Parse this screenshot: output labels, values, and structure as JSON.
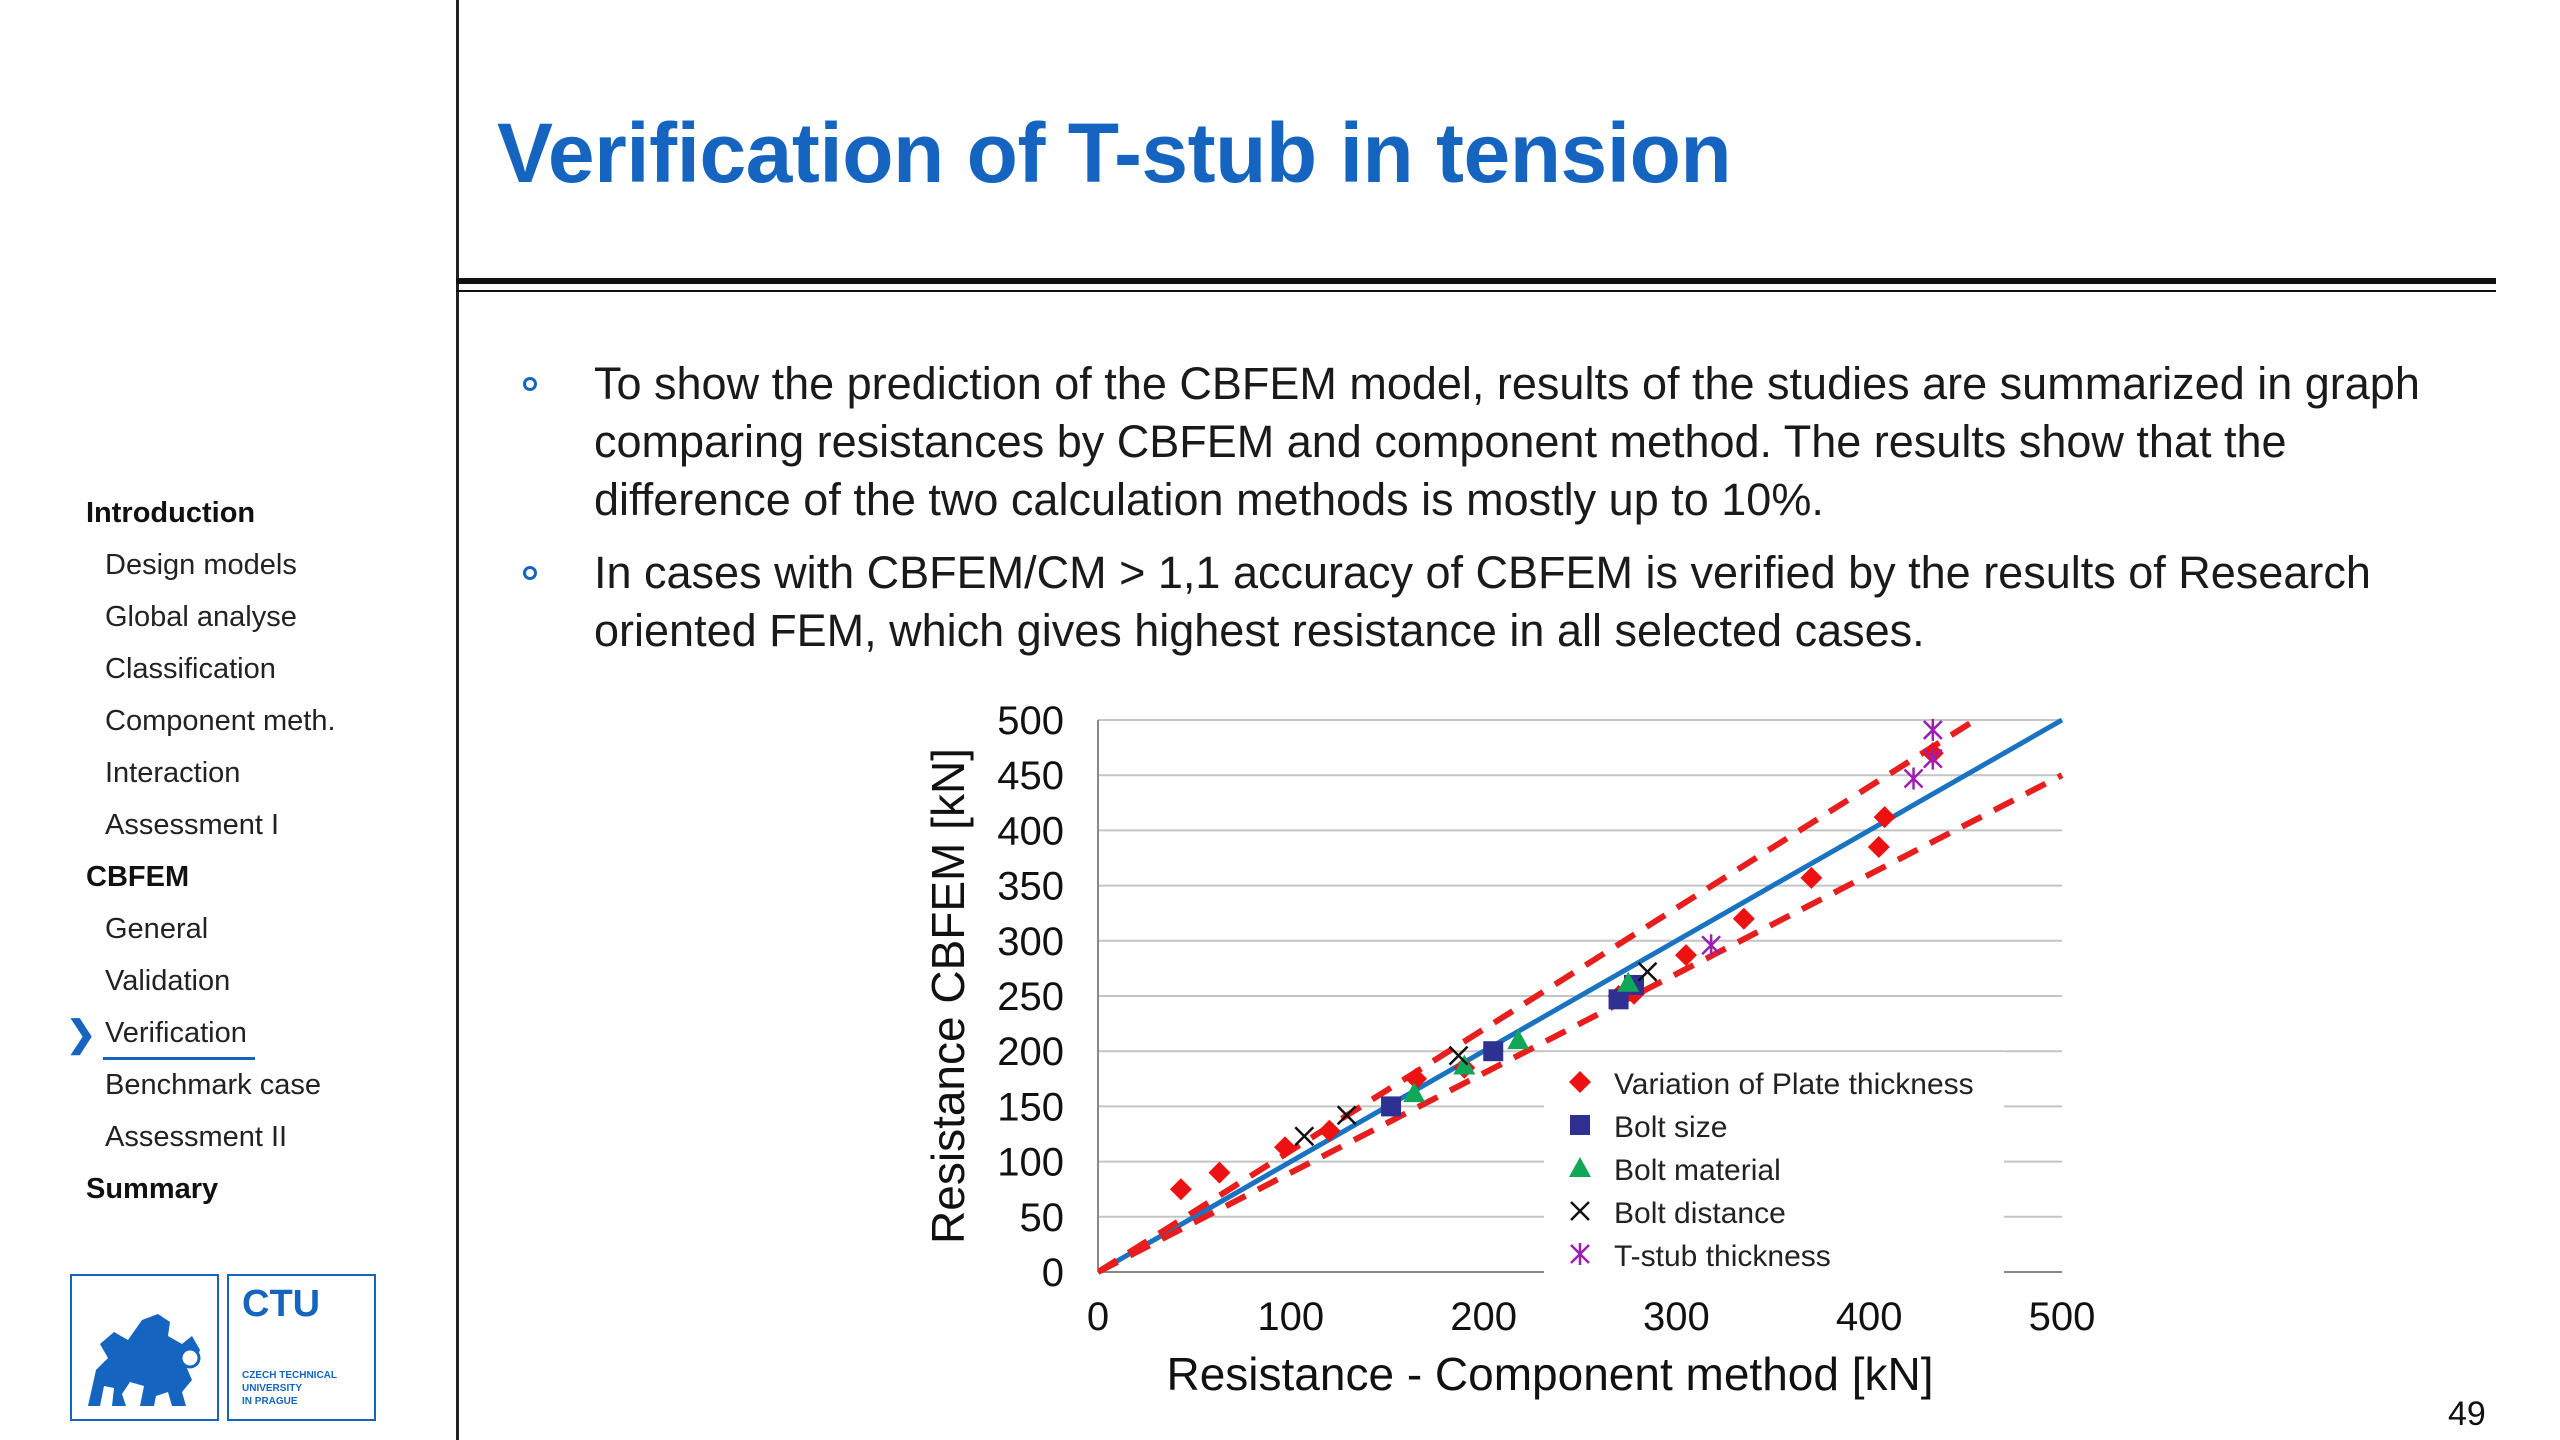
{
  "slide": {
    "title": "Verification of T-stub in tension",
    "page_number": "49"
  },
  "sidebar": {
    "items": [
      {
        "label": "Introduction",
        "type": "section"
      },
      {
        "label": "Design models",
        "type": "sub"
      },
      {
        "label": "Global analyse",
        "type": "sub"
      },
      {
        "label": "Classification",
        "type": "sub"
      },
      {
        "label": "Component meth.",
        "type": "sub"
      },
      {
        "label": "Interaction",
        "type": "sub"
      },
      {
        "label": "Assessment I",
        "type": "sub"
      },
      {
        "label": "CBFEM",
        "type": "section"
      },
      {
        "label": "General",
        "type": "sub"
      },
      {
        "label": "Validation",
        "type": "sub"
      },
      {
        "label": "Verification",
        "type": "sub",
        "active": true
      },
      {
        "label": "Benchmark case",
        "type": "sub"
      },
      {
        "label": "Assessment II",
        "type": "sub"
      },
      {
        "label": "Summary",
        "type": "section"
      }
    ],
    "active_marker": "❯",
    "accent_color": "#1565c0"
  },
  "bullets": [
    "To show the prediction of the CBFEM model, results of the studies are summarized in graph comparing resistances by CBFEM and component method. The results show that the difference of the two calculation methods is mostly up to 10%.",
    "In cases with CBFEM/CM > 1,1 accuracy of CBFEM is verified by the results of Research oriented FEM, which gives highest resistance in all selected cases."
  ],
  "logo": {
    "text": "CTU",
    "subtext": [
      "CZECH TECHNICAL",
      "UNIVERSITY",
      "IN PRAGUE"
    ],
    "color": "#1565c0"
  },
  "chart_data": {
    "type": "scatter",
    "xlabel": "Resistance - Component method [kN]",
    "ylabel": "Resistance CBFEM [kN]",
    "xlim": [
      0,
      500
    ],
    "ylim": [
      0,
      500
    ],
    "xticks": [
      "0",
      "100",
      "200",
      "300",
      "400",
      "500"
    ],
    "yticks": [
      "0",
      "50",
      "100",
      "150",
      "200",
      "250",
      "300",
      "350",
      "400",
      "450",
      "500"
    ],
    "grid": "horizontal",
    "legend_position": "bottom-right",
    "series": [
      {
        "name": "Variation of Plate thickness",
        "marker": "diamond",
        "color": "#ee1111",
        "points": [
          [
            43,
            75
          ],
          [
            63,
            90
          ],
          [
            97,
            113
          ],
          [
            120,
            128
          ],
          [
            165,
            175
          ],
          [
            190,
            185
          ],
          [
            270,
            250
          ],
          [
            278,
            252
          ],
          [
            305,
            287
          ],
          [
            335,
            320
          ],
          [
            370,
            357
          ],
          [
            405,
            385
          ],
          [
            408,
            412
          ],
          [
            433,
            470
          ]
        ]
      },
      {
        "name": "Bolt size",
        "marker": "square",
        "color": "#2e3192",
        "points": [
          [
            152,
            150
          ],
          [
            205,
            200
          ],
          [
            270,
            247
          ],
          [
            278,
            260
          ]
        ]
      },
      {
        "name": "Bolt material",
        "marker": "triangle",
        "color": "#10a858",
        "points": [
          [
            164,
            162
          ],
          [
            190,
            187
          ],
          [
            218,
            210
          ],
          [
            275,
            262
          ]
        ]
      },
      {
        "name": "Bolt distance",
        "marker": "x",
        "color": "#111111",
        "points": [
          [
            107,
            123
          ],
          [
            129,
            142
          ],
          [
            187,
            196
          ],
          [
            285,
            272
          ]
        ]
      },
      {
        "name": "T-stub thickness",
        "marker": "star",
        "color": "#9b1fb0",
        "points": [
          [
            318,
            296
          ],
          [
            423,
            447
          ],
          [
            433,
            465
          ],
          [
            433,
            491
          ]
        ]
      }
    ],
    "reference_lines": [
      {
        "kind": "y = x",
        "color": "#1a73c0",
        "style": "solid",
        "from": [
          0,
          0
        ],
        "to": [
          500,
          500
        ]
      },
      {
        "kind": "+10%",
        "color": "#e81e1e",
        "style": "dashed",
        "from": [
          0,
          0
        ],
        "to": [
          455,
          500
        ]
      },
      {
        "kind": "-10%",
        "color": "#e81e1e",
        "style": "dashed",
        "from": [
          0,
          0
        ],
        "to": [
          500,
          450
        ]
      }
    ]
  }
}
